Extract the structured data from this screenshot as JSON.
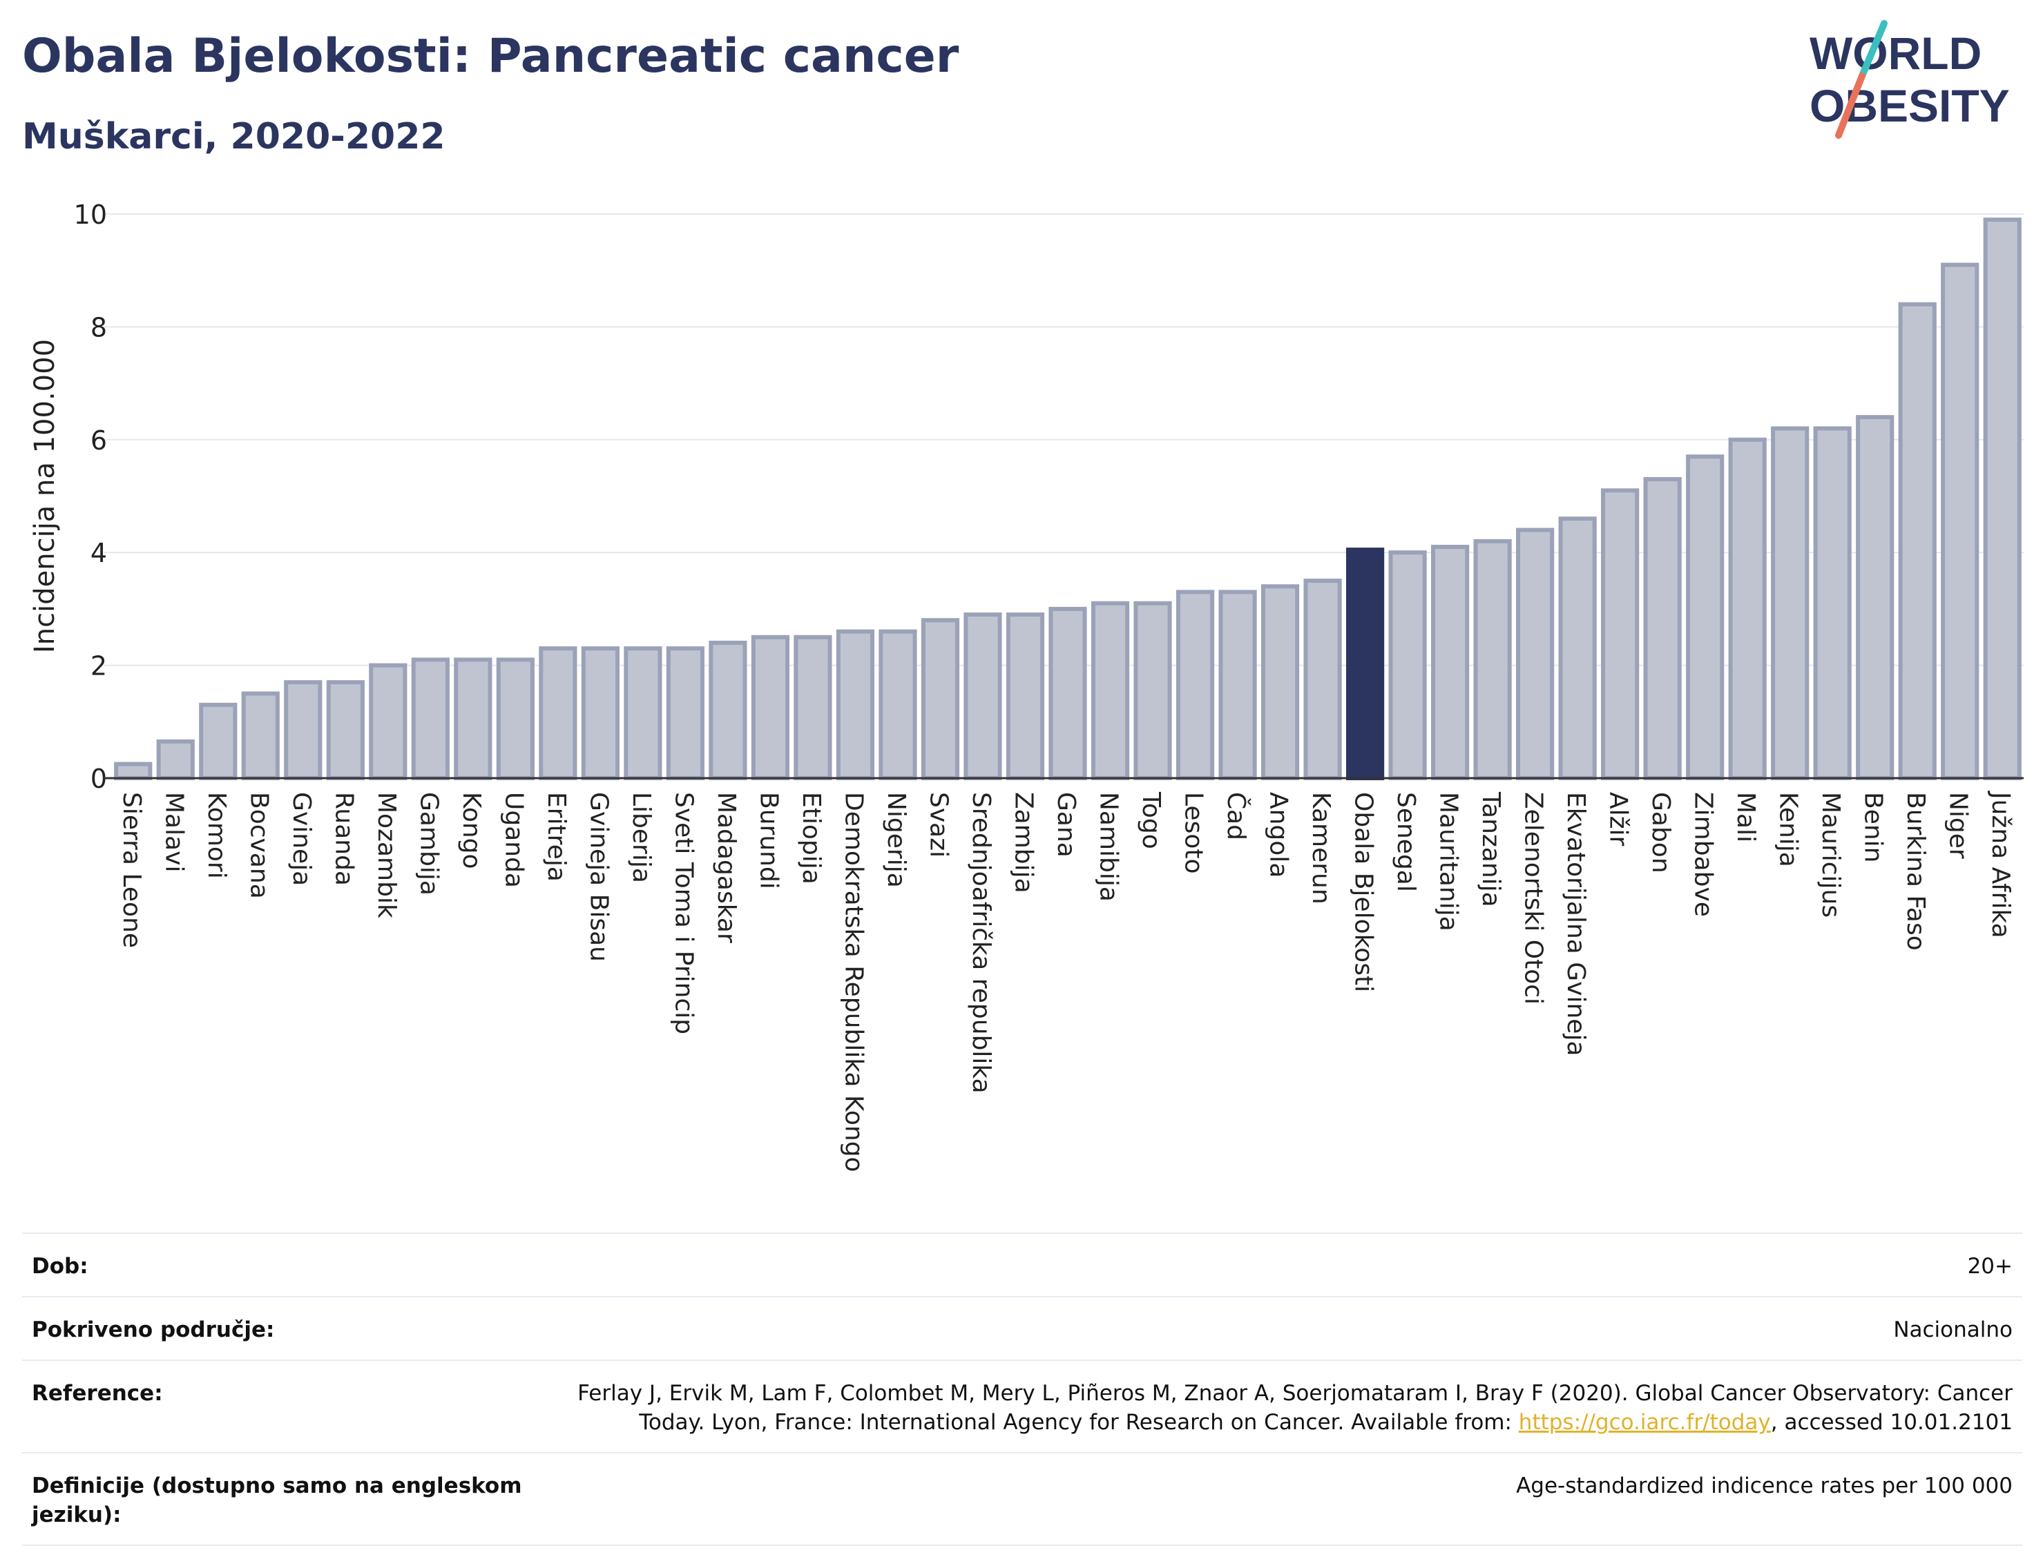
{
  "header": {
    "title": "Obala Bjelokosti: Pancreatic cancer",
    "subtitle": "Muškarci, 2020-2022"
  },
  "logo": {
    "line1": "WORLD",
    "line2": "OBESITY",
    "colors": {
      "text": "#2b3560",
      "slash_teal": "#3bbfc0",
      "slash_coral": "#e8735a"
    }
  },
  "colors": {
    "bar_fill": "#c0c4d1",
    "bar_stroke": "#9ba2b8",
    "highlight_fill": "#2b3560",
    "grid": "#e3e8ee",
    "axis": "#333333"
  },
  "chart_data": {
    "type": "bar",
    "ylabel": "Incidencija na 100.000",
    "ylim": [
      0,
      10
    ],
    "yticks": [
      0,
      2,
      4,
      6,
      8,
      10
    ],
    "grid": true,
    "highlight": "Obala Bjelokosti",
    "categories": [
      "Sierra Leone",
      "Malavi",
      "Komori",
      "Bocvana",
      "Gvineja",
      "Ruanda",
      "Mozambik",
      "Gambija",
      "Kongo",
      "Uganda",
      "Eritreja",
      "Gvineja Bisau",
      "Liberija",
      "Sveti Toma i Princip",
      "Madagaskar",
      "Burundi",
      "Etiopija",
      "Demokratska Republika Kongo",
      "Nigerija",
      "Svazi",
      "Srednjoafrička republika",
      "Zambija",
      "Gana",
      "Namibija",
      "Togo",
      "Lesoto",
      "Čad",
      "Angola",
      "Kamerun",
      "Obala Bjelokosti",
      "Senegal",
      "Mauritanija",
      "Tanzanija",
      "Zelenortski Otoci",
      "Ekvatorijalna Gvineja",
      "Alžir",
      "Gabon",
      "Zimbabve",
      "Mali",
      "Kenija",
      "Mauricijus",
      "Benin",
      "Burkina Faso",
      "Niger",
      "Južna Afrika"
    ],
    "values": [
      0.25,
      0.65,
      1.3,
      1.5,
      1.7,
      1.7,
      2.0,
      2.1,
      2.1,
      2.1,
      2.3,
      2.3,
      2.3,
      2.3,
      2.4,
      2.5,
      2.5,
      2.6,
      2.6,
      2.8,
      2.9,
      2.9,
      3.0,
      3.1,
      3.1,
      3.3,
      3.3,
      3.4,
      3.5,
      4.05,
      4.0,
      4.1,
      4.2,
      4.4,
      4.6,
      5.1,
      5.3,
      5.7,
      6.0,
      6.2,
      6.2,
      6.4,
      8.4,
      9.1,
      9.9
    ]
  },
  "info": {
    "rows": [
      {
        "label": "Dob:",
        "value": "20+"
      },
      {
        "label": "Pokriveno područje:",
        "value": "Nacionalno"
      },
      {
        "label": "Reference:",
        "value_line1": "Ferlay J, Ervik M, Lam F, Colombet M, Mery L, Piñeros M, Znaor A, Soerjomataram I, Bray F (2020). Global Cancer Observatory: Cancer",
        "value_line2_pre": "Today. Lyon, France: International Agency for Research on Cancer. Available from: ",
        "link": "https://gco.iarc.fr/today",
        "value_line2_post": ", accessed 10.01.2101"
      },
      {
        "label": "Definicije (dostupno samo na engleskom jeziku):",
        "value": "Age-standardized indicence rates per 100 000"
      }
    ]
  }
}
